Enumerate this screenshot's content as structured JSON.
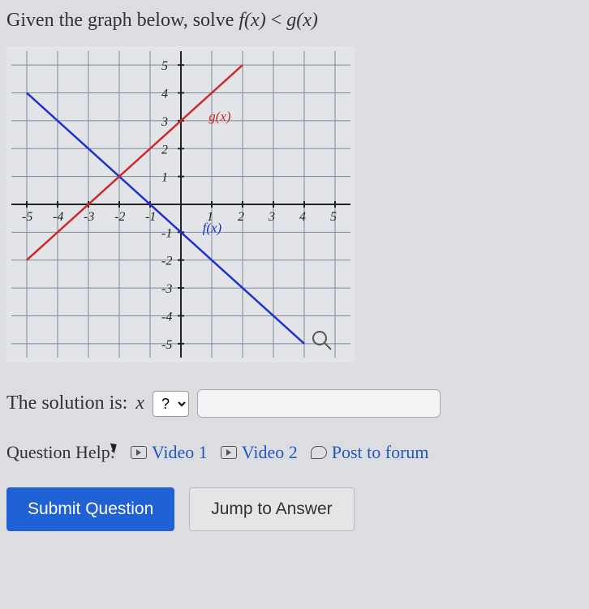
{
  "question": {
    "prefix": "Given the graph below, solve ",
    "f": "f(x)",
    "op": " < ",
    "g": "g(x)"
  },
  "graph": {
    "xmin": -5.5,
    "xmax": 5.5,
    "ymin": -5.5,
    "ymax": 5.5,
    "xticks": [
      -5,
      -4,
      -3,
      -2,
      -1,
      1,
      2,
      3,
      4,
      5
    ],
    "yticks": [
      -5,
      -4,
      -3,
      -2,
      -1,
      1,
      2,
      3,
      4,
      5
    ],
    "grid_color": "#7a8aa0",
    "axis_color": "#222222",
    "bg_color": "#e3e4e7",
    "tick_fontsize": 16,
    "line_width": 2.5,
    "lines": [
      {
        "name": "f(x)",
        "color": "#2030d0",
        "points": [
          [
            -5,
            4
          ],
          [
            4,
            -5
          ]
        ],
        "label_pos": [
          0.7,
          -1.0
        ]
      },
      {
        "name": "g(x)",
        "color": "#cc2a2a",
        "points": [
          [
            -5,
            -2
          ],
          [
            2,
            5
          ]
        ],
        "label_pos": [
          0.9,
          3.0
        ]
      }
    ],
    "magnifier_at": [
      4.5,
      -4.8
    ]
  },
  "solution": {
    "label": "The solution is: ",
    "var": "x",
    "operator_placeholder": "?",
    "operator_options": [
      "?",
      "<",
      ">",
      "≤",
      "≥",
      "="
    ],
    "answer_value": ""
  },
  "help": {
    "label": "Question Help:",
    "links": [
      {
        "text": "Video 1",
        "icon": "play"
      },
      {
        "text": "Video 2",
        "icon": "play"
      },
      {
        "text": "Post to forum",
        "icon": "bubble"
      }
    ]
  },
  "buttons": {
    "submit": "Submit Question",
    "jump": "Jump to Answer"
  }
}
